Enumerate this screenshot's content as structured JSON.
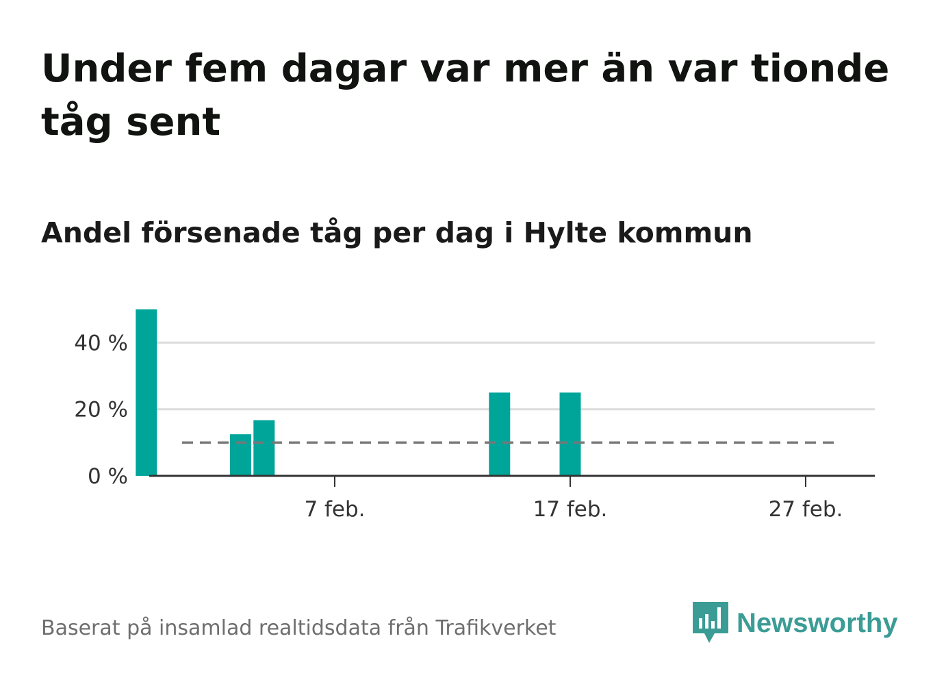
{
  "title": "Under fem dagar var mer än var tionde tåg sent",
  "subtitle": "Andel försenade tåg per dag i Hylte kommun",
  "source": "Baserat på insamlad realtidsdata från Trafikverket",
  "brand": {
    "name": "Newsworthy",
    "icon": "newsworthy-logo-icon",
    "color": "#3b9c95"
  },
  "colors": {
    "bar": "#00a59a",
    "reference_line": "#777777",
    "grid": "#dcdcdc",
    "axis": "#333333"
  },
  "chart_data": {
    "type": "bar",
    "x": [
      "30 jan.",
      "3 feb.",
      "4 feb.",
      "14 feb.",
      "17 feb."
    ],
    "values": [
      50,
      12.5,
      16.7,
      25,
      25
    ],
    "reference_line": 10,
    "ylim": [
      0,
      51
    ],
    "yticks": [
      0,
      20,
      40
    ],
    "ytick_labels": [
      "0 %",
      "20 %",
      "40 %"
    ],
    "x_tick_labels": [
      "7 feb.",
      "17 feb.",
      "27 feb."
    ],
    "grid": "horizontal"
  }
}
